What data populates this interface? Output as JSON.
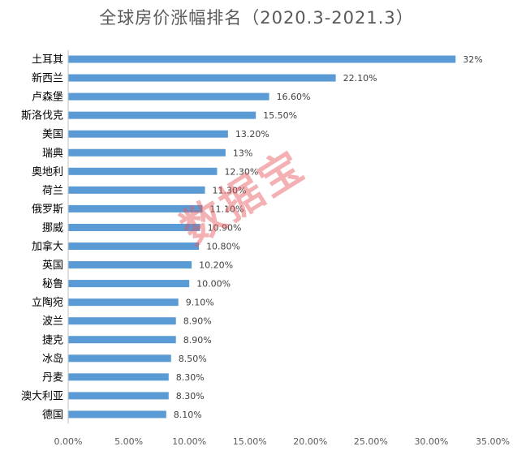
{
  "chart_data": {
    "type": "bar",
    "orientation": "horizontal",
    "title": "全球房价涨幅排名（2020.3-2021.3）",
    "categories": [
      "土耳其",
      "新西兰",
      "卢森堡",
      "斯洛伐克",
      "美国",
      "瑞典",
      "奥地利",
      "荷兰",
      "俄罗斯",
      "挪威",
      "加拿大",
      "英国",
      "秘鲁",
      "立陶宛",
      "波兰",
      "捷克",
      "冰岛",
      "丹麦",
      "澳大利亚",
      "德国"
    ],
    "values": [
      32,
      22.1,
      16.6,
      15.5,
      13.2,
      13,
      12.3,
      11.3,
      11.1,
      10.9,
      10.8,
      10.2,
      10.0,
      9.1,
      8.9,
      8.9,
      8.5,
      8.3,
      8.3,
      8.1
    ],
    "value_labels": [
      "32%",
      "22.10%",
      "16.60%",
      "15.50%",
      "13.20%",
      "13%",
      "12.30%",
      "11.30%",
      "11.10%",
      "10.90%",
      "10.80%",
      "10.20%",
      "10.00%",
      "9.10%",
      "8.90%",
      "8.90%",
      "8.50%",
      "8.30%",
      "8.30%",
      "8.10%"
    ],
    "xlim": [
      0,
      35
    ],
    "xticks": [
      0,
      5,
      10,
      15,
      20,
      25,
      30,
      35
    ],
    "xtick_labels": [
      "0.00%",
      "5.00%",
      "10.00%",
      "15.00%",
      "20.00%",
      "25.00%",
      "30.00%",
      "35.00%"
    ],
    "bar_color": "#5b9bd5",
    "grid": false,
    "legend": "none",
    "xlabel": "",
    "ylabel": ""
  },
  "watermark": "数据宝"
}
